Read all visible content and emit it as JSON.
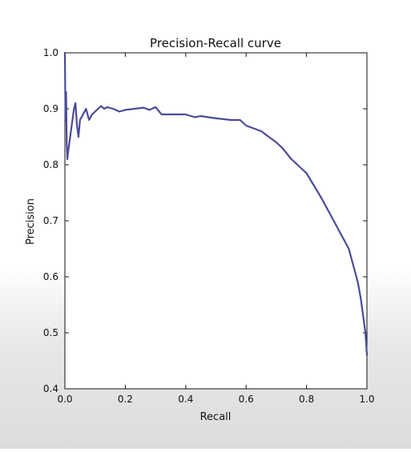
{
  "chart_data": {
    "type": "line",
    "title": "Precision-Recall curve",
    "xlabel": "Recall",
    "ylabel": "Precision",
    "xlim": [
      0.0,
      1.0
    ],
    "ylim": [
      0.4,
      1.0
    ],
    "xticks": [
      0.0,
      0.2,
      0.4,
      0.6,
      0.8,
      1.0
    ],
    "xtick_labels": [
      "0.0",
      "0.2",
      "0.4",
      "0.6",
      "0.8",
      "1.0"
    ],
    "yticks": [
      0.4,
      0.5,
      0.6,
      0.7,
      0.8,
      0.9,
      1.0
    ],
    "ytick_labels": [
      "0.4",
      "0.5",
      "0.6",
      "0.7",
      "0.8",
      "0.9",
      "1.0"
    ],
    "grid": false,
    "line_color": "#4b4b9a",
    "series": [
      {
        "x": [
          0.0,
          0.002,
          0.004,
          0.006,
          0.008,
          0.01,
          0.015,
          0.02,
          0.025,
          0.03,
          0.035,
          0.04,
          0.045,
          0.05,
          0.06,
          0.07,
          0.08,
          0.09,
          0.1,
          0.11,
          0.12,
          0.13,
          0.14,
          0.16,
          0.18,
          0.2,
          0.23,
          0.26,
          0.28,
          0.3,
          0.32,
          0.35,
          0.4,
          0.43,
          0.45,
          0.5,
          0.55,
          0.58,
          0.6,
          0.65,
          0.7,
          0.72,
          0.75,
          0.78,
          0.8,
          0.85,
          0.88,
          0.9,
          0.92,
          0.94,
          0.95,
          0.96,
          0.97,
          0.98,
          0.985,
          0.99,
          0.995,
          1.0
        ],
        "y": [
          1.0,
          0.88,
          0.93,
          0.84,
          0.81,
          0.82,
          0.84,
          0.86,
          0.88,
          0.9,
          0.91,
          0.87,
          0.85,
          0.88,
          0.89,
          0.9,
          0.88,
          0.89,
          0.895,
          0.9,
          0.905,
          0.9,
          0.903,
          0.9,
          0.895,
          0.898,
          0.9,
          0.902,
          0.898,
          0.903,
          0.89,
          0.89,
          0.89,
          0.885,
          0.887,
          0.883,
          0.88,
          0.88,
          0.87,
          0.86,
          0.84,
          0.83,
          0.81,
          0.795,
          0.785,
          0.74,
          0.71,
          0.69,
          0.67,
          0.65,
          0.63,
          0.61,
          0.59,
          0.56,
          0.54,
          0.52,
          0.5,
          0.46
        ]
      }
    ]
  }
}
